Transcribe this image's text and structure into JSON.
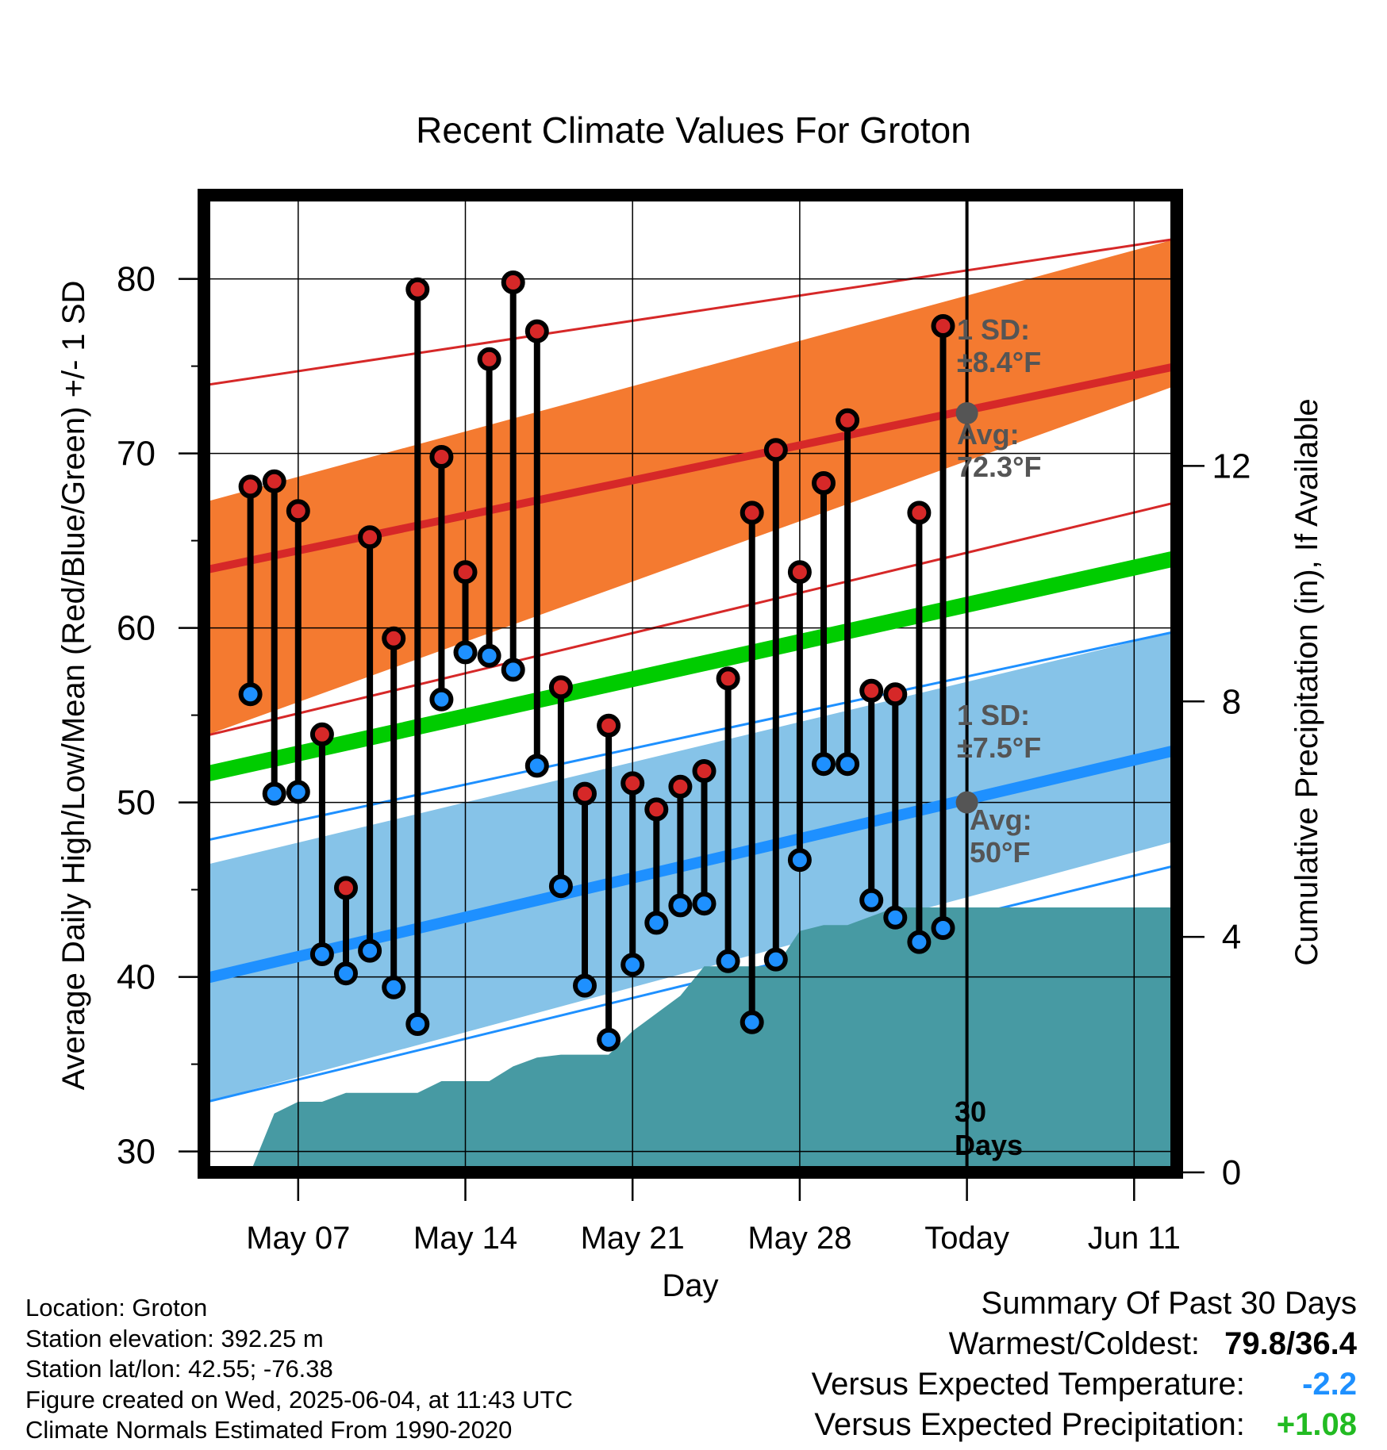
{
  "chart_data": {
    "type": "line",
    "title": "Recent Climate Values For Groton",
    "xlabel": "Day",
    "ylabel_left": "Average Daily High/Low/Mean (Red/Blue/Green) +/- 1 SD",
    "ylabel_right": "Cumulative Precipitation (in), If Available",
    "ylim_left": [
      28.8,
      84.8
    ],
    "ylim_right": [
      0,
      16.6
    ],
    "x_range_days": [
      "May 04",
      "Jun 14"
    ],
    "x_ticks": [
      "May 07",
      "May 14",
      "May 21",
      "May 28",
      "Today",
      "Jun 11"
    ],
    "y_ticks_left": [
      30,
      40,
      50,
      60,
      70,
      80
    ],
    "y_ticks_right": [
      0,
      4,
      8,
      12
    ],
    "grid": true,
    "normals": {
      "high_avg": [
        63.3,
        75.0
      ],
      "high_sd_band": [
        [
          53.8,
          73.9
        ],
        [
          67.2,
          82.3
        ]
      ],
      "low_avg": [
        39.9,
        53.0
      ],
      "low_sd_band": [
        [
          32.8,
          47.8
        ],
        [
          46.4,
          59.8
        ]
      ],
      "mean_avg": [
        51.6,
        64.0
      ]
    },
    "today_markers": {
      "high": {
        "label_sd": "1 SD:",
        "sd": "±8.4°F",
        "label_avg": "Avg:",
        "avg": "72.3°F",
        "value": 72.3
      },
      "low": {
        "label_sd": "1 SD:",
        "sd": "±7.5°F",
        "label_avg": "Avg:",
        "avg": "50°F",
        "value": 50.0
      }
    },
    "period_label": [
      "30",
      "Days"
    ],
    "daily_obs": {
      "dates": [
        "May 05",
        "May 06",
        "May 07",
        "May 08",
        "May 09",
        "May 10",
        "May 11",
        "May 12",
        "May 13",
        "May 14",
        "May 15",
        "May 16",
        "May 17",
        "May 18",
        "May 19",
        "May 20",
        "May 21",
        "May 22",
        "May 23",
        "May 24",
        "May 25",
        "May 26",
        "May 27",
        "May 28",
        "May 29",
        "May 30",
        "May 31",
        "Jun 01",
        "Jun 02",
        "Jun 03"
      ],
      "high": [
        68.1,
        68.4,
        66.7,
        53.9,
        45.1,
        65.2,
        59.4,
        79.4,
        69.8,
        63.2,
        75.4,
        79.8,
        77.0,
        56.6,
        50.5,
        54.4,
        51.1,
        49.6,
        50.9,
        51.8,
        57.1,
        66.6,
        70.2,
        63.2,
        68.3,
        71.9,
        56.4,
        56.2,
        66.6,
        77.3
      ],
      "low": [
        56.2,
        50.5,
        50.6,
        41.3,
        40.2,
        41.5,
        39.4,
        37.3,
        55.9,
        58.6,
        58.4,
        57.6,
        52.1,
        45.2,
        39.5,
        36.4,
        40.7,
        43.1,
        44.1,
        44.2,
        40.9,
        37.4,
        41.0,
        46.7,
        52.2,
        52.2,
        44.4,
        43.4,
        42.0,
        42.8
      ]
    },
    "precip_cumulative": {
      "dates": [
        "May 04",
        "May 05",
        "May 06",
        "May 07",
        "May 08",
        "May 09",
        "May 10",
        "May 11",
        "May 12",
        "May 13",
        "May 14",
        "May 15",
        "May 16",
        "May 17",
        "May 18",
        "May 19",
        "May 20",
        "May 21",
        "May 22",
        "May 23",
        "May 24",
        "May 25",
        "May 26",
        "May 27",
        "May 28",
        "May 29",
        "May 30",
        "May 31",
        "Jun 01",
        "Jun 02",
        "Jun 03"
      ],
      "values": [
        0,
        0,
        1.0,
        1.2,
        1.2,
        1.35,
        1.35,
        1.35,
        1.35,
        1.55,
        1.55,
        1.55,
        1.8,
        1.95,
        2.0,
        2.0,
        2.0,
        2.4,
        2.7,
        3.0,
        3.5,
        3.5,
        3.5,
        3.5,
        4.1,
        4.2,
        4.2,
        4.35,
        4.5,
        4.5,
        4.5
      ],
      "extends_to_end": true
    },
    "colors": {
      "high_band": "#f47a30",
      "high_line": "#d62828",
      "low_band": "#86c3e8",
      "low_line": "#1e90ff",
      "mean_line": "#00cc00",
      "precip_fill": "#479aa3",
      "high_marker": "#d62828",
      "low_marker": "#1e90ff",
      "avg_marker": "#555555",
      "annotation_text": "#555555"
    }
  },
  "footer": {
    "location": "Location: Groton",
    "elevation": "Station elevation: 392.25 m",
    "latlon": "Station lat/lon: 42.55; -76.38",
    "created": "Figure created on Wed, 2025-06-04, at 11:43 UTC",
    "normals": "Climate Normals Estimated From 1990-2020"
  },
  "summary": {
    "heading": "Summary Of Past 30 Days",
    "warm_cold_label": "Warmest/Coldest:",
    "warm_cold_value": "79.8/36.4",
    "temp_label": "Versus Expected Temperature:",
    "temp_value": "-2.2",
    "temp_color": "#1e90ff",
    "precip_label": "Versus Expected Precipitation:",
    "precip_value": "+1.08",
    "precip_color": "#22bb22"
  }
}
